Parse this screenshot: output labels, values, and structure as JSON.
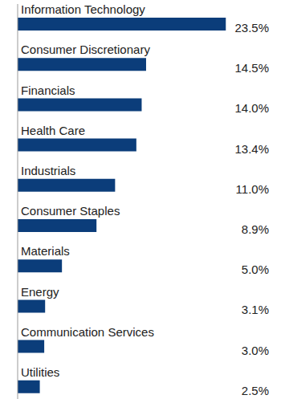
{
  "chart_data": {
    "type": "bar",
    "orientation": "horizontal",
    "categories": [
      "Information Technology",
      "Consumer Discretionary",
      "Financials",
      "Health Care",
      "Industrials",
      "Consumer Staples",
      "Materials",
      "Energy",
      "Communication Services",
      "Utilities"
    ],
    "values": [
      23.5,
      14.5,
      14.0,
      13.4,
      11.0,
      8.9,
      5.0,
      3.1,
      3.0,
      2.5
    ],
    "value_labels": [
      "23.5%",
      "14.5%",
      "14.0%",
      "13.4%",
      "11.0%",
      "8.9%",
      "5.0%",
      "3.1%",
      "3.0%",
      "2.5%"
    ],
    "color": "#0b3d7a",
    "xlim": [
      0,
      30
    ],
    "data_labels": true,
    "tick_labels": "y",
    "grid": false
  }
}
